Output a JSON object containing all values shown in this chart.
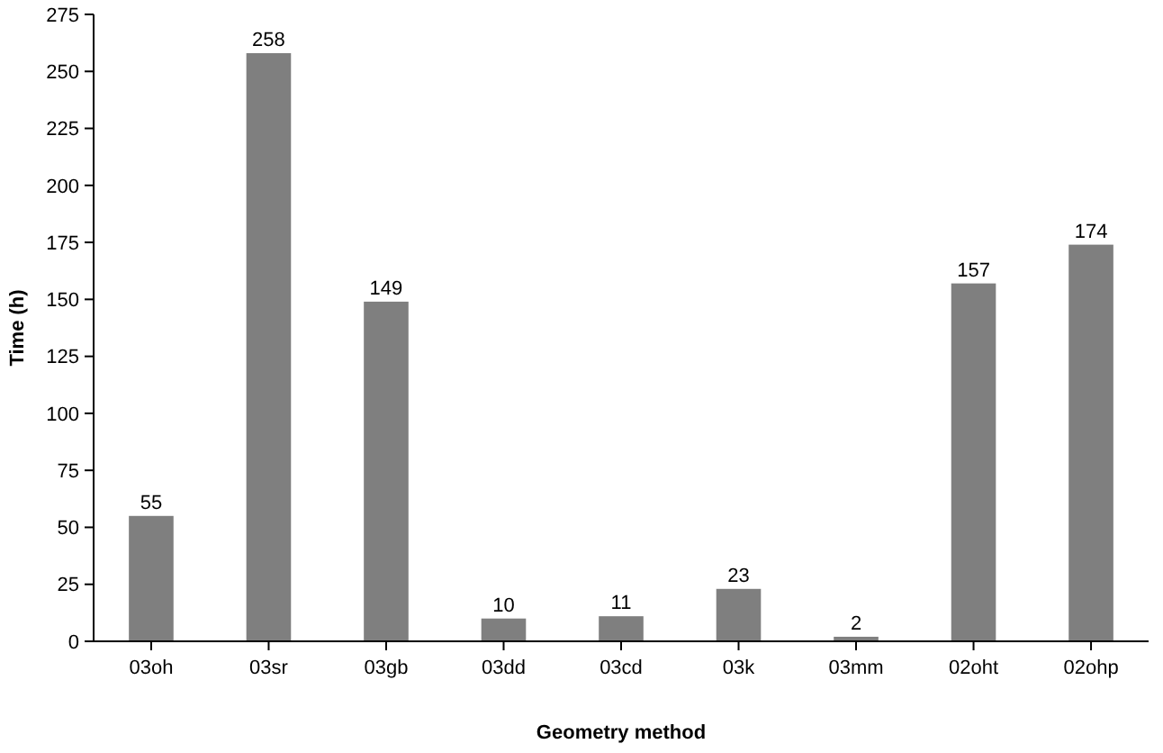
{
  "chart_data": {
    "type": "bar",
    "xlabel": "Geometry method",
    "ylabel": "Time (h)",
    "categories": [
      "03oh",
      "03sr",
      "03gb",
      "03dd",
      "03cd",
      "03k",
      "03mm",
      "02oht",
      "02ohp"
    ],
    "values": [
      55,
      258,
      149,
      10,
      11,
      23,
      2,
      157,
      174
    ],
    "color": "#7f7f7f",
    "ylim": [
      0,
      275
    ],
    "yticks": [
      0,
      25,
      50,
      75,
      100,
      125,
      150,
      175,
      200,
      225,
      250,
      275
    ],
    "data_labels": true,
    "grid": false
  }
}
